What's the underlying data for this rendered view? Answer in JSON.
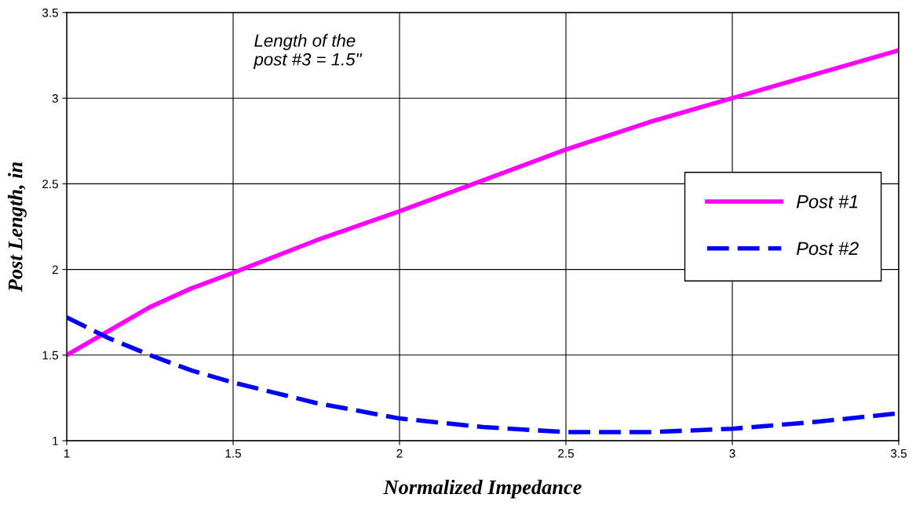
{
  "chart_data": {
    "type": "line",
    "xlabel": "Normalized Impedance",
    "ylabel": "Post Length, in",
    "annotations": [
      "Length of the\npost #3 = 1.5\""
    ],
    "x": [
      1,
      1.125,
      1.25,
      1.375,
      1.5,
      1.75,
      2,
      2.25,
      2.5,
      2.75,
      3,
      3.25,
      3.5
    ],
    "series": [
      {
        "name": "Post #1",
        "color": "#ff00ff",
        "line_style": "solid",
        "values": [
          1.5,
          1.64,
          1.78,
          1.89,
          1.98,
          2.17,
          2.34,
          2.52,
          2.7,
          2.86,
          3.0,
          3.14,
          3.28
        ]
      },
      {
        "name": "Post #2",
        "color": "#0000ff",
        "line_style": "dashed",
        "values": [
          1.72,
          1.6,
          1.5,
          1.41,
          1.34,
          1.22,
          1.13,
          1.08,
          1.05,
          1.05,
          1.07,
          1.11,
          1.16
        ]
      }
    ],
    "xlim": [
      1,
      3.5
    ],
    "xticks": [
      1,
      1.5,
      2,
      2.5,
      3,
      3.5
    ],
    "ylim": [
      1,
      3.5
    ],
    "yticks": [
      1,
      1.5,
      2,
      2.5,
      3,
      3.5
    ],
    "grid": true,
    "legend": "center right",
    "marker": "none"
  }
}
